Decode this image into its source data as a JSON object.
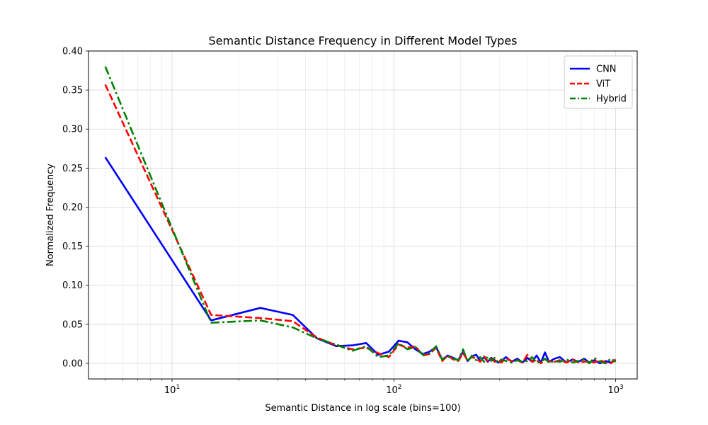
{
  "chart_data": {
    "type": "line",
    "title": "Semantic Distance Frequency in Different Model Types",
    "xlabel": "Semantic Distance in log scale (bins=100)",
    "ylabel": "Normalized Frequency",
    "x_scale": "log",
    "xlim": [
      4.2,
      1250
    ],
    "ylim": [
      -0.02,
      0.4
    ],
    "x_ticks": [
      {
        "value": 10,
        "base": "10",
        "exp": "1"
      },
      {
        "value": 100,
        "base": "10",
        "exp": "2"
      },
      {
        "value": 1000,
        "base": "10",
        "exp": "3"
      }
    ],
    "y_ticks": [
      0.0,
      0.05,
      0.1,
      0.15,
      0.2,
      0.25,
      0.3,
      0.35,
      0.4
    ],
    "y_tick_labels": [
      "0.00",
      "0.05",
      "0.10",
      "0.15",
      "0.20",
      "0.25",
      "0.30",
      "0.35",
      "0.40"
    ],
    "grid": true,
    "legend_position": "top-right",
    "series": [
      {
        "name": "CNN",
        "color": "#0000ff",
        "style": "solid",
        "x": [
          5,
          15,
          25,
          35,
          45,
          55,
          65,
          75,
          85,
          95,
          105,
          115,
          125,
          135,
          145,
          155,
          165,
          175,
          185,
          195,
          205,
          215,
          225,
          235,
          245,
          255,
          265,
          275,
          285,
          295,
          305,
          320,
          340,
          360,
          380,
          400,
          420,
          440,
          460,
          480,
          500,
          530,
          560,
          600,
          640,
          680,
          720,
          760,
          800,
          850,
          900,
          950,
          1000
        ],
        "values": [
          0.264,
          0.055,
          0.071,
          0.062,
          0.032,
          0.022,
          0.023,
          0.026,
          0.011,
          0.015,
          0.029,
          0.027,
          0.018,
          0.012,
          0.015,
          0.021,
          0.005,
          0.01,
          0.007,
          0.004,
          0.015,
          0.003,
          0.009,
          0.011,
          0.003,
          0.008,
          0.002,
          0.007,
          0.004,
          0.001,
          0.003,
          0.008,
          0.002,
          0.006,
          0.001,
          0.007,
          0.002,
          0.01,
          0.001,
          0.014,
          0.002,
          0.006,
          0.008,
          0.001,
          0.005,
          0.002,
          0.006,
          0.001,
          0.004,
          0.0,
          0.003,
          0.001,
          0.004
        ]
      },
      {
        "name": "ViT",
        "color": "#ff0000",
        "style": "dashed",
        "x": [
          5,
          15,
          25,
          35,
          45,
          55,
          65,
          75,
          85,
          95,
          105,
          115,
          125,
          135,
          145,
          155,
          165,
          175,
          185,
          195,
          205,
          215,
          225,
          235,
          245,
          255,
          265,
          275,
          285,
          295,
          305,
          320,
          340,
          360,
          380,
          400,
          420,
          440,
          460,
          480,
          500,
          530,
          560,
          600,
          640,
          680,
          720,
          760,
          800,
          850,
          900,
          950,
          1000
        ],
        "values": [
          0.357,
          0.062,
          0.058,
          0.054,
          0.033,
          0.023,
          0.018,
          0.02,
          0.013,
          0.008,
          0.024,
          0.02,
          0.022,
          0.01,
          0.012,
          0.02,
          0.003,
          0.01,
          0.005,
          0.003,
          0.013,
          0.004,
          0.008,
          0.006,
          0.002,
          0.009,
          0.003,
          0.006,
          0.002,
          0.004,
          0.001,
          0.006,
          0.003,
          0.004,
          0.001,
          0.011,
          0.002,
          0.004,
          0.0,
          0.005,
          0.003,
          0.002,
          0.004,
          0.001,
          0.005,
          0.001,
          0.002,
          0.003,
          0.001,
          0.004,
          0.001,
          0.0,
          0.005
        ]
      },
      {
        "name": "Hybrid",
        "color": "#008000",
        "style": "dashdot",
        "x": [
          5,
          15,
          25,
          35,
          45,
          55,
          65,
          75,
          85,
          95,
          105,
          115,
          125,
          135,
          145,
          155,
          165,
          175,
          185,
          195,
          205,
          215,
          225,
          235,
          245,
          255,
          265,
          275,
          285,
          295,
          305,
          320,
          340,
          360,
          380,
          400,
          420,
          440,
          460,
          480,
          500,
          530,
          560,
          600,
          640,
          680,
          720,
          760,
          800,
          850,
          900,
          950,
          1000
        ],
        "values": [
          0.38,
          0.052,
          0.055,
          0.046,
          0.032,
          0.024,
          0.016,
          0.022,
          0.008,
          0.01,
          0.026,
          0.018,
          0.021,
          0.011,
          0.013,
          0.022,
          0.005,
          0.009,
          0.006,
          0.004,
          0.018,
          0.002,
          0.01,
          0.004,
          0.008,
          0.002,
          0.009,
          0.003,
          0.007,
          0.001,
          0.005,
          0.003,
          0.001,
          0.004,
          0.002,
          0.003,
          0.008,
          0.001,
          0.002,
          0.006,
          0.001,
          0.003,
          0.002,
          0.005,
          0.001,
          0.003,
          0.005,
          0.0,
          0.007,
          0.002,
          0.0,
          0.006,
          0.002
        ]
      }
    ]
  }
}
